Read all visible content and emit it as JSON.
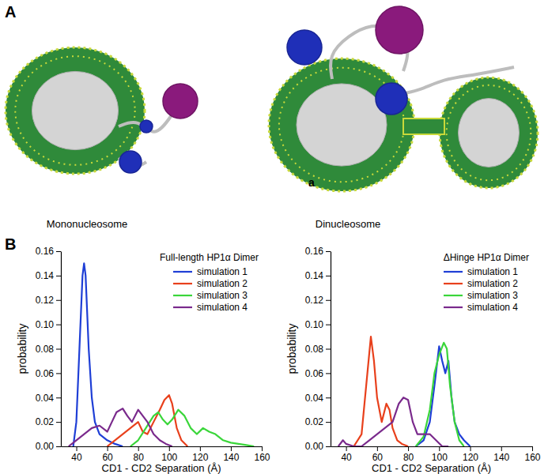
{
  "panel_a": {
    "label": "A",
    "images": [
      {
        "caption": "Mononucleosome"
      },
      {
        "caption": "Dinucleosome",
        "annotation": "a"
      }
    ]
  },
  "panel_b": {
    "label": "B"
  },
  "chart_data": [
    {
      "type": "line",
      "title": "Full-length HP1α Dimer",
      "x_label": "CD1 - CD2 Separation (Å)",
      "y_label": "probability",
      "xlim": [
        30,
        160
      ],
      "xticks": [
        40,
        60,
        80,
        100,
        120,
        140,
        160
      ],
      "ylim": [
        0,
        0.16
      ],
      "yticks": [
        {
          "value": 0,
          "label": "0.00"
        },
        {
          "value": 0.02,
          "label": "0.02"
        },
        {
          "value": 0.04,
          "label": "0.04"
        },
        {
          "value": 0.06,
          "label": "0.06"
        },
        {
          "value": 0.08,
          "label": "0.08"
        },
        {
          "value": 0.1,
          "label": "0.10"
        },
        {
          "value": 0.12,
          "label": "0.12"
        },
        {
          "value": 0.14,
          "label": "0.14"
        },
        {
          "value": 0.16,
          "label": "0.16"
        }
      ],
      "legend": "upper right",
      "series": [
        {
          "name": "simulation 1",
          "color": "#1f3fd6",
          "x": [
            38,
            40,
            42,
            44,
            45,
            46,
            48,
            50,
            52,
            55,
            60,
            65,
            70
          ],
          "values": [
            0,
            0.02,
            0.08,
            0.14,
            0.15,
            0.14,
            0.08,
            0.04,
            0.02,
            0.01,
            0.005,
            0.002,
            0
          ]
        },
        {
          "name": "simulation 2",
          "color": "#e8401c",
          "x": [
            60,
            65,
            70,
            75,
            80,
            83,
            86,
            90,
            94,
            97,
            100,
            102,
            105,
            108,
            112
          ],
          "values": [
            0,
            0.005,
            0.01,
            0.015,
            0.02,
            0.012,
            0.01,
            0.02,
            0.03,
            0.038,
            0.042,
            0.035,
            0.015,
            0.005,
            0
          ]
        },
        {
          "name": "simulation 3",
          "color": "#3ad63a",
          "x": [
            75,
            80,
            85,
            90,
            93,
            96,
            99,
            102,
            106,
            110,
            114,
            118,
            122,
            126,
            130,
            135,
            140,
            145,
            150,
            155
          ],
          "values": [
            0,
            0.005,
            0.015,
            0.025,
            0.028,
            0.022,
            0.018,
            0.022,
            0.03,
            0.025,
            0.015,
            0.01,
            0.015,
            0.012,
            0.01,
            0.005,
            0.003,
            0.002,
            0.001,
            0
          ]
        },
        {
          "name": "simulation 4",
          "color": "#7a2a8c",
          "x": [
            35,
            40,
            45,
            50,
            55,
            60,
            63,
            66,
            70,
            73,
            76,
            80,
            83,
            86,
            90,
            94,
            98,
            102
          ],
          "values": [
            0,
            0.005,
            0.01,
            0.015,
            0.017,
            0.012,
            0.02,
            0.028,
            0.031,
            0.025,
            0.02,
            0.03,
            0.025,
            0.02,
            0.01,
            0.005,
            0.002,
            0
          ]
        }
      ]
    },
    {
      "type": "line",
      "title": "ΔHinge HP1α Dimer",
      "x_label": "CD1 - CD2 Separation (Å)",
      "y_label": "probability",
      "xlim": [
        30,
        160
      ],
      "xticks": [
        40,
        60,
        80,
        100,
        120,
        140,
        160
      ],
      "ylim": [
        0,
        0.16
      ],
      "yticks": [
        {
          "value": 0,
          "label": "0.00"
        },
        {
          "value": 0.02,
          "label": "0.02"
        },
        {
          "value": 0.04,
          "label": "0.04"
        },
        {
          "value": 0.06,
          "label": "0.06"
        },
        {
          "value": 0.08,
          "label": "0.08"
        },
        {
          "value": 0.1,
          "label": "0.10"
        },
        {
          "value": 0.12,
          "label": "0.12"
        },
        {
          "value": 0.14,
          "label": "0.14"
        },
        {
          "value": 0.16,
          "label": "0.16"
        }
      ],
      "legend": "upper right",
      "series": [
        {
          "name": "simulation 1",
          "color": "#1f3fd6",
          "x": [
            85,
            90,
            94,
            97,
            100,
            102,
            104,
            106,
            108,
            110,
            113,
            116,
            120
          ],
          "values": [
            0,
            0.005,
            0.02,
            0.05,
            0.082,
            0.07,
            0.06,
            0.07,
            0.04,
            0.02,
            0.01,
            0.005,
            0
          ]
        },
        {
          "name": "simulation 2",
          "color": "#e8401c",
          "x": [
            45,
            50,
            53,
            56,
            58,
            60,
            63,
            66,
            68,
            70,
            73,
            76,
            80
          ],
          "values": [
            0,
            0.01,
            0.05,
            0.09,
            0.07,
            0.04,
            0.02,
            0.035,
            0.03,
            0.015,
            0.005,
            0.002,
            0
          ]
        },
        {
          "name": "simulation 3",
          "color": "#3ad63a",
          "x": [
            85,
            90,
            94,
            97,
            100,
            103,
            105,
            107,
            110,
            113,
            116
          ],
          "values": [
            0,
            0.008,
            0.03,
            0.06,
            0.075,
            0.085,
            0.08,
            0.05,
            0.02,
            0.005,
            0
          ]
        },
        {
          "name": "simulation 4",
          "color": "#7a2a8c",
          "x": [
            35,
            38,
            40,
            45,
            50,
            55,
            60,
            65,
            70,
            74,
            77,
            80,
            83,
            86,
            90,
            94,
            98,
            102,
            106
          ],
          "values": [
            0,
            0.005,
            0.002,
            0,
            0,
            0.005,
            0.01,
            0.015,
            0.02,
            0.035,
            0.04,
            0.038,
            0.02,
            0.01,
            0.01,
            0.01,
            0.005,
            0,
            0
          ]
        }
      ]
    }
  ]
}
